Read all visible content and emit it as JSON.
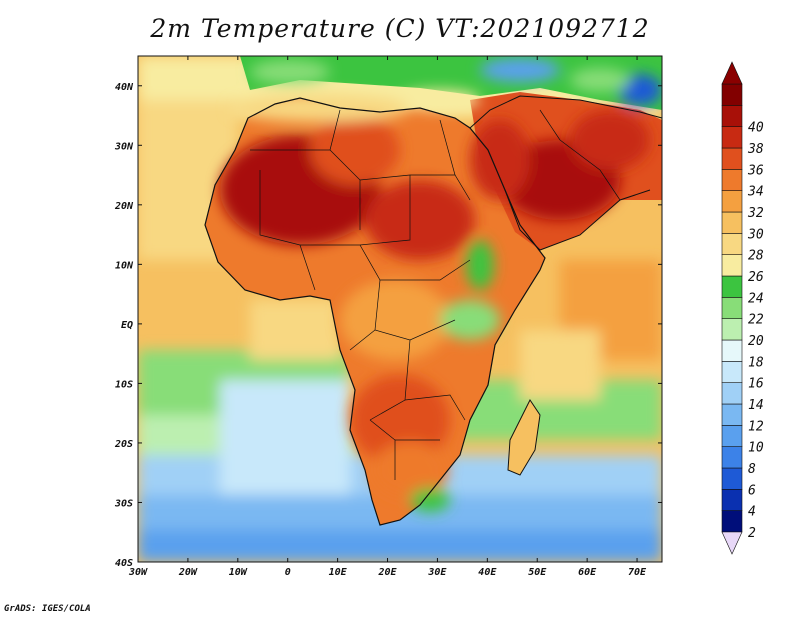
{
  "title": "2m Temperature (C) VT:2021092712",
  "credit": "GrADS: IGES/COLA",
  "map": {
    "lat_labels": [
      "40N",
      "30N",
      "20N",
      "10N",
      "EQ",
      "10S",
      "20S",
      "30S",
      "40S"
    ],
    "lon_labels": [
      "30W",
      "20W",
      "10W",
      "0",
      "10E",
      "20E",
      "30E",
      "40E",
      "50E",
      "60E",
      "70E"
    ],
    "lat_range": [
      -40,
      45
    ],
    "lon_range": [
      -30,
      75
    ]
  },
  "colorbar": {
    "label": "2m Temperature (C)",
    "levels": [
      "2",
      "4",
      "6",
      "8",
      "10",
      "12",
      "14",
      "16",
      "18",
      "20",
      "22",
      "24",
      "26",
      "28",
      "30",
      "32",
      "34",
      "36",
      "38",
      "40"
    ],
    "colors": [
      "#000e7a",
      "#0a30b0",
      "#1e5ad6",
      "#3c82e8",
      "#5aa0ee",
      "#7ab8f2",
      "#a0d0f6",
      "#c8e8fa",
      "#e6f8fa",
      "#bcefb0",
      "#88dd78",
      "#3cc440",
      "#f8eca0",
      "#f8d882",
      "#f6c060",
      "#f4a040",
      "#ee7a2c",
      "#e0501e",
      "#c82a12",
      "#a81008",
      "#820000"
    ],
    "under_color": "#e8d8f8",
    "over_color": "#8a0000"
  }
}
